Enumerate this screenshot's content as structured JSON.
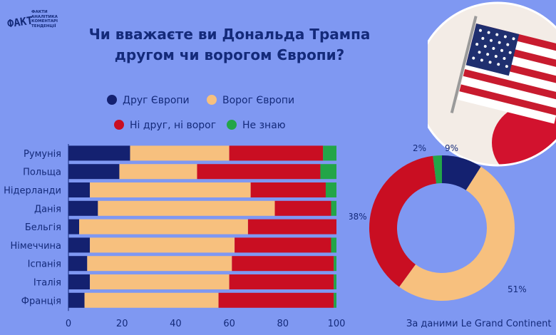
{
  "logo": {
    "mark": "ФАКТ",
    "lines": [
      "ФАКТИ",
      "АНАЛІТИКА",
      "КОМЕНТАРІ",
      "ТЕНДЕНЦІЇ"
    ]
  },
  "title_line1": "Чи вважаєте ви Дональда Трампа",
  "title_line2": "другом чи ворогом Європи?",
  "legend": [
    {
      "label": "Друг Європи",
      "color": "#142170"
    },
    {
      "label": "Ворог Європи",
      "color": "#f7c07e"
    },
    {
      "label": "Ні друг, ні ворог",
      "color": "#c90e22"
    },
    {
      "label": "Не знаю",
      "color": "#23a548"
    }
  ],
  "source": "За даними Le Grand Continent",
  "colors": {
    "background": "#7f98f2",
    "text": "#142a7a"
  },
  "chart_data": [
    {
      "type": "bar",
      "orientation": "horizontal",
      "stacked": true,
      "categories": [
        "Румунія",
        "Польща",
        "Нідерланди",
        "Данія",
        "Бельгія",
        "Німеччина",
        "Іспанія",
        "Італія",
        "Франція"
      ],
      "series": [
        {
          "name": "Друг Європи",
          "color": "#142170",
          "values": [
            23,
            19,
            8,
            11,
            4,
            8,
            7,
            8,
            6
          ]
        },
        {
          "name": "Ворог Європи",
          "color": "#f7c07e",
          "values": [
            37,
            29,
            60,
            66,
            63,
            54,
            54,
            52,
            50
          ]
        },
        {
          "name": "Ні друг, ні ворог",
          "color": "#c90e22",
          "values": [
            35,
            46,
            28,
            21,
            33,
            36,
            38,
            39,
            43
          ]
        },
        {
          "name": "Не знаю",
          "color": "#23a548",
          "values": [
            5,
            6,
            4,
            2,
            0,
            2,
            1,
            1,
            1
          ]
        }
      ],
      "xlim": [
        0,
        100
      ],
      "xticks": [
        0,
        20,
        40,
        60,
        80,
        100
      ],
      "legend_position": "top"
    },
    {
      "type": "pie",
      "donut": true,
      "labels": [
        "Друг Європи",
        "Ворог Європи",
        "Ні друг, ні ворог",
        "Не знаю"
      ],
      "values": [
        9,
        51,
        38,
        2
      ],
      "value_labels": [
        "9%",
        "51%",
        "38%",
        "2%"
      ],
      "colors": [
        "#142170",
        "#f7c07e",
        "#c90e22",
        "#23a548"
      ]
    }
  ]
}
